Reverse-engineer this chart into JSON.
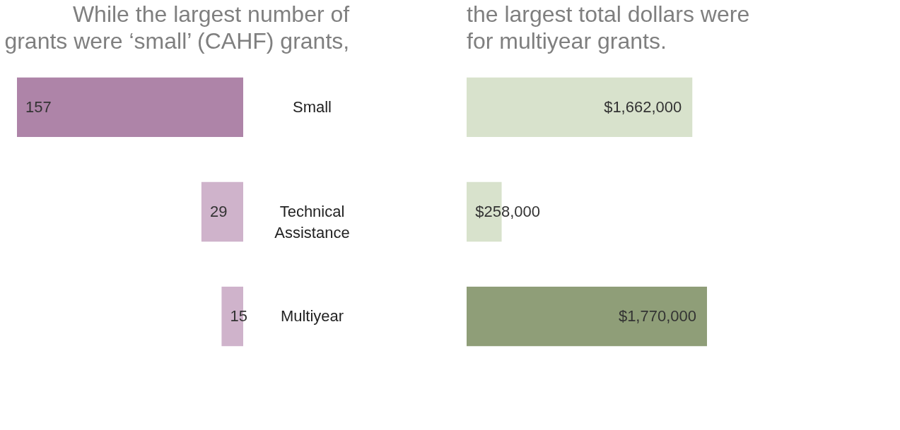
{
  "chart_data": [
    {
      "type": "bar",
      "orientation": "horizontal",
      "title": "While the largest number of\ngrants were ‘small’ (CAHF) grants,",
      "categories": [
        "Small",
        "Technical Assistance",
        "Multiyear"
      ],
      "values": [
        157,
        29,
        15
      ],
      "colors": [
        "#ae84a8",
        "#cfb3cb",
        "#cfb3cb"
      ],
      "data_labels": true
    },
    {
      "type": "bar",
      "orientation": "horizontal",
      "title": "the largest total dollars were\nfor multiyear grants.",
      "categories": [
        null,
        null,
        null
      ],
      "values": [
        1662000,
        258000,
        1770000
      ],
      "colors": [
        "#d8e2cc",
        "#d8e2cc",
        "#8f9e78"
      ],
      "value_labels": [
        "$1,662,000",
        "$258,000",
        "$1,770,000"
      ]
    }
  ]
}
